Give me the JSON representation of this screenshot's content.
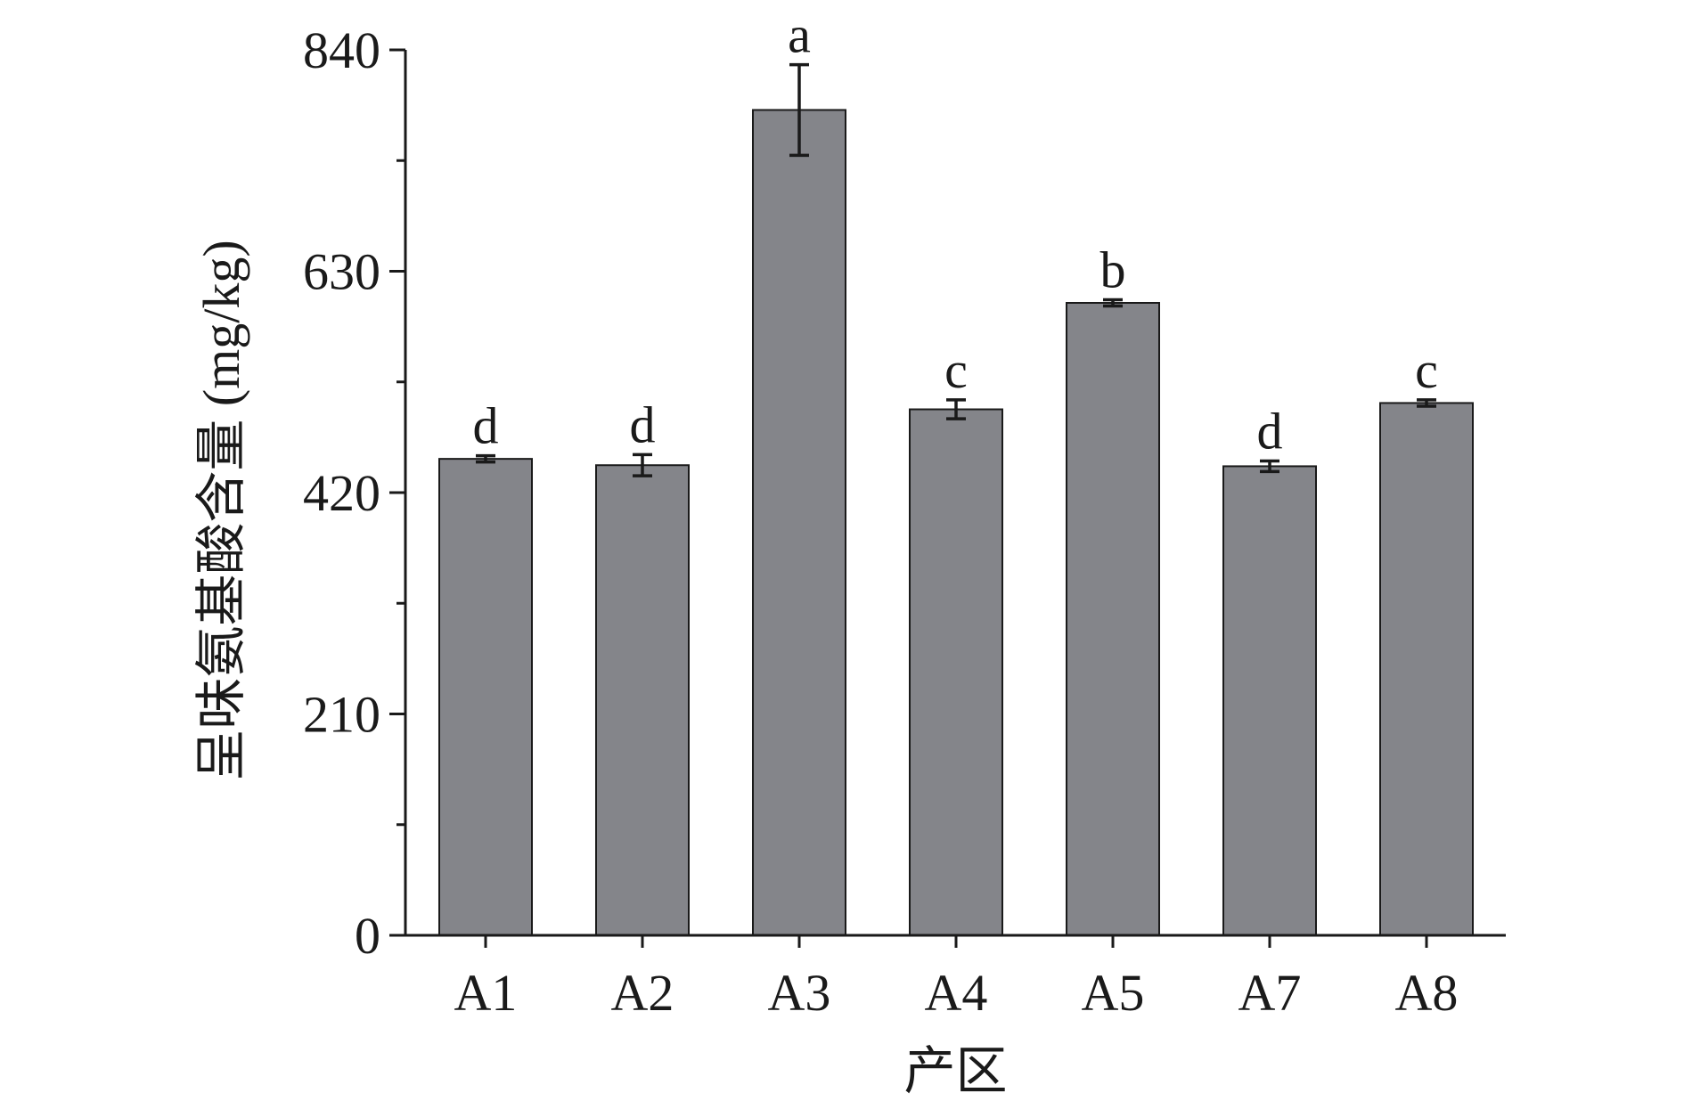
{
  "chart_data": {
    "type": "bar",
    "title": "",
    "xlabel": "产区",
    "ylabel": "呈味氨基酸含量 (mg/kg)",
    "categories": [
      "A1",
      "A2",
      "A3",
      "A4",
      "A5",
      "A7",
      "A8"
    ],
    "values": [
      452,
      446,
      783,
      499,
      600,
      445,
      505
    ],
    "errors": [
      3,
      10,
      43,
      9,
      3,
      5,
      3
    ],
    "significance": [
      "d",
      "d",
      "a",
      "c",
      "b",
      "d",
      "c"
    ],
    "ylim": [
      0,
      840
    ],
    "yticks": [
      "0",
      "210",
      "420",
      "630",
      "840"
    ],
    "ytick_values": [
      0,
      210,
      420,
      630,
      840
    ],
    "y_minor_step": 105,
    "bar_color": "#84858a",
    "edge_color": "#1a1a1a",
    "grid": false,
    "legend": "none"
  }
}
